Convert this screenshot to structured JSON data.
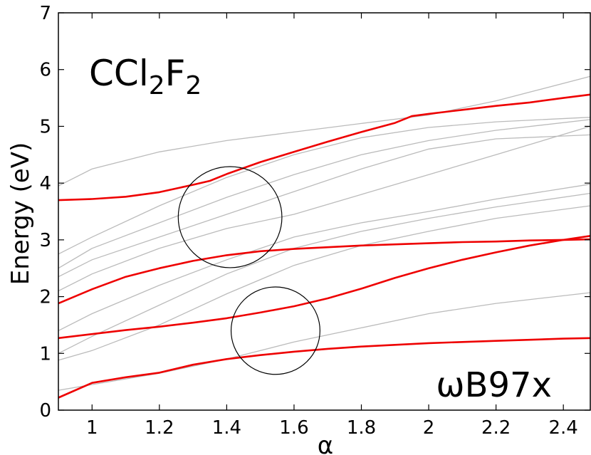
{
  "chart_data": {
    "type": "line",
    "xlabel": "α",
    "ylabel": "Energy (eV)",
    "xlim": [
      0.9,
      2.48
    ],
    "ylim": [
      0,
      7
    ],
    "xticks": [
      1,
      1.2,
      1.4,
      1.6,
      1.8,
      2,
      2.2,
      2.4
    ],
    "xtick_labels": [
      "1",
      "1.2",
      "1.4",
      "1.6",
      "1.8",
      "2",
      "2.2",
      "2.4"
    ],
    "yticks": [
      0,
      1,
      2,
      3,
      4,
      5,
      6,
      7
    ],
    "ytick_labels": [
      "0",
      "1",
      "2",
      "3",
      "4",
      "5",
      "6",
      "7"
    ],
    "grid": false,
    "annotations": {
      "molecule": {
        "base": "CCl",
        "sub1": "2",
        "mid": "F",
        "sub2": "2"
      },
      "method": "ωB97x"
    },
    "colors": {
      "highlight": "#ee0000",
      "background_lines": "#bbbbbb",
      "circles": "#000000"
    },
    "highlighted_series": [
      {
        "x": [
          0.9,
          1.0,
          1.1,
          1.2,
          1.3,
          1.35,
          1.4,
          1.5,
          1.6,
          1.7,
          1.8,
          1.9,
          1.95,
          2.0,
          2.1,
          2.2,
          2.3,
          2.4,
          2.48
        ],
        "y": [
          3.7,
          3.72,
          3.76,
          3.84,
          3.97,
          4.04,
          4.16,
          4.37,
          4.55,
          4.73,
          4.9,
          5.06,
          5.18,
          5.22,
          5.29,
          5.36,
          5.42,
          5.5,
          5.56
        ]
      },
      {
        "x": [
          0.9,
          1.0,
          1.1,
          1.2,
          1.3,
          1.4,
          1.5,
          1.6,
          1.7,
          1.8,
          1.9,
          2.0,
          2.1,
          2.2,
          2.3,
          2.4,
          2.48
        ],
        "y": [
          1.88,
          2.13,
          2.35,
          2.5,
          2.63,
          2.73,
          2.8,
          2.84,
          2.87,
          2.9,
          2.92,
          2.94,
          2.96,
          2.97,
          2.99,
          3.0,
          3.01
        ]
      },
      {
        "x": [
          0.9,
          1.0,
          1.1,
          1.2,
          1.3,
          1.4,
          1.5,
          1.6,
          1.7,
          1.8,
          1.9,
          2.0,
          2.1,
          2.2,
          2.3,
          2.4,
          2.48
        ],
        "y": [
          1.27,
          1.34,
          1.41,
          1.47,
          1.54,
          1.62,
          1.72,
          1.83,
          1.97,
          2.14,
          2.33,
          2.5,
          2.65,
          2.78,
          2.9,
          3.0,
          3.07
        ]
      },
      {
        "x": [
          0.9,
          1.0,
          1.1,
          1.2,
          1.3,
          1.4,
          1.5,
          1.6,
          1.7,
          1.8,
          1.9,
          2.0,
          2.1,
          2.2,
          2.3,
          2.4,
          2.48
        ],
        "y": [
          0.22,
          0.48,
          0.58,
          0.66,
          0.8,
          0.9,
          0.97,
          1.03,
          1.08,
          1.12,
          1.15,
          1.18,
          1.2,
          1.22,
          1.24,
          1.26,
          1.27
        ]
      }
    ],
    "background_series": [
      {
        "x": [
          0.9,
          1.0,
          1.2,
          1.4,
          1.6,
          1.8,
          2.0,
          2.2,
          2.48
        ],
        "y": [
          3.95,
          4.25,
          4.55,
          4.75,
          4.9,
          5.05,
          5.2,
          5.45,
          5.88
        ]
      },
      {
        "x": [
          0.9,
          1.0,
          1.2,
          1.4,
          1.6,
          1.8,
          2.0,
          2.2,
          2.48
        ],
        "y": [
          2.75,
          3.05,
          3.6,
          4.1,
          4.5,
          4.8,
          4.98,
          5.08,
          5.16
        ]
      },
      {
        "x": [
          0.9,
          1.0,
          1.2,
          1.4,
          1.6,
          1.8,
          2.0,
          2.2,
          2.48
        ],
        "y": [
          2.5,
          2.85,
          3.3,
          3.75,
          4.15,
          4.5,
          4.75,
          4.93,
          5.12
        ]
      },
      {
        "x": [
          0.9,
          1.0,
          1.2,
          1.4,
          1.6,
          1.8,
          2.0,
          2.2,
          2.48
        ],
        "y": [
          2.35,
          2.65,
          3.05,
          3.45,
          3.85,
          4.25,
          4.6,
          4.78,
          4.85
        ]
      },
      {
        "x": [
          0.9,
          1.0,
          1.2,
          1.4,
          1.6,
          1.8,
          2.0,
          2.2,
          2.48
        ],
        "y": [
          2.1,
          2.4,
          2.85,
          3.2,
          3.45,
          3.8,
          4.15,
          4.5,
          5.0
        ]
      },
      {
        "x": [
          0.9,
          1.0,
          1.2,
          1.4,
          1.6,
          1.8,
          2.0,
          2.2,
          2.48
        ],
        "y": [
          1.4,
          1.7,
          2.2,
          2.65,
          3.05,
          3.3,
          3.5,
          3.72,
          3.98
        ]
      },
      {
        "x": [
          0.9,
          1.0,
          1.2,
          1.4,
          1.6,
          1.8,
          2.0,
          2.2,
          2.48
        ],
        "y": [
          1.0,
          1.3,
          1.85,
          2.4,
          2.85,
          3.15,
          3.38,
          3.58,
          3.82
        ]
      },
      {
        "x": [
          0.9,
          1.0,
          1.2,
          1.4,
          1.6,
          1.8,
          2.0,
          2.2,
          2.48
        ],
        "y": [
          0.88,
          1.05,
          1.5,
          2.05,
          2.55,
          2.9,
          3.15,
          3.38,
          3.6
        ]
      },
      {
        "x": [
          0.9,
          1.0,
          1.2,
          1.4,
          1.6,
          1.8,
          2.0,
          2.2,
          2.48
        ],
        "y": [
          0.35,
          0.45,
          0.65,
          0.9,
          1.2,
          1.45,
          1.7,
          1.88,
          2.07
        ]
      }
    ],
    "circles": [
      {
        "cx": 1.41,
        "cy": 3.4,
        "rx": 0.154,
        "ry": 0.89
      },
      {
        "cx": 1.545,
        "cy": 1.4,
        "rx": 0.132,
        "ry": 0.77
      }
    ]
  }
}
